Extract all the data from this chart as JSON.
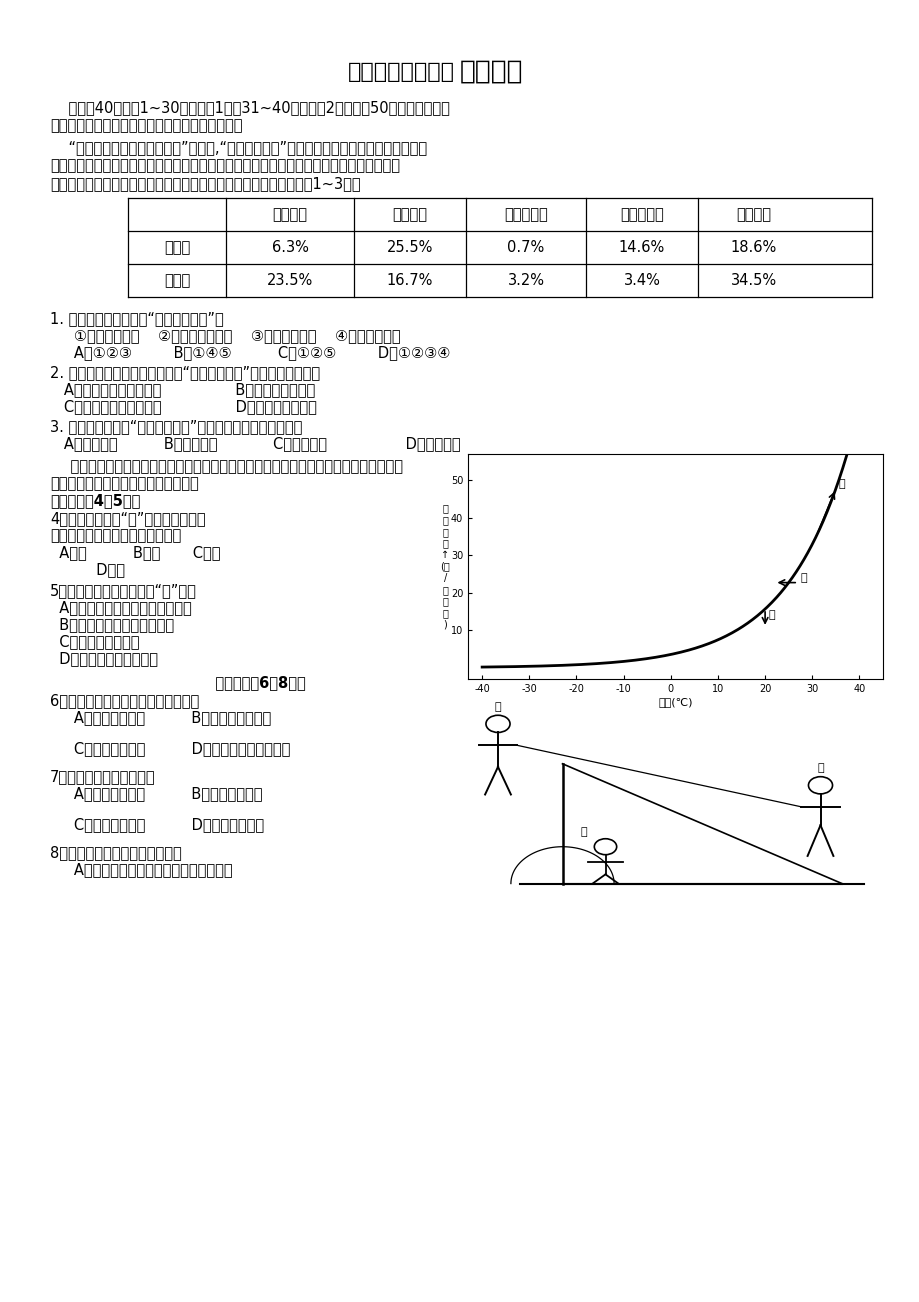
{
  "title_normal": "高三学年十月月考",
  "title_bold": "地理试题",
  "bg_color": "#ffffff",
  "text_color": "#000000",
  "intro_line1": "    本卷共40小题。1~30题每小题1分，31~40题每小题2分，共计50分。在每小题给",
  "intro_line2": "出的四个选项中，只有一项是最符合题目要求的。",
  "p1_line1": "    “民以食为天，粮以土为本。”近年来,“保护性耕作法”越来越得到人们的重视，它是指对耕",
  "p1_line2": "地实行免耕或浅耕措施，并在粮食收割时，及时将作物秸秆粉碎后归还农田，或者将庄稼茬",
  "p1_line3": "子留在田地过冬。下表为某地实验前后冬春季节有关实验资料，回答1~3题。",
  "table_headers": [
    "",
    "土壤水分",
    "土壤空气",
    "土壤有机质",
    "大气悬浮质",
    "大气水分"
  ],
  "table_row1": [
    "实验前",
    "6.3%",
    "25.5%",
    "0.7%",
    "14.6%",
    "18.6%"
  ],
  "table_row2": [
    "实验后",
    "23.5%",
    "16.7%",
    "3.2%",
    "3.4%",
    "34.5%"
  ],
  "q1": "1. 实验结果反映了实行“保护性耕作法”能",
  "q1_opts": "   ①保持土壤水分    ②增强土壤透气性    ③增加大气湿度    ④减少空气污染",
  "q1_ans": "   A．①②③         B．①④⑤          C．①②⑤         D．①②③④",
  "q2": "2. 下列功效中，哪项不属于实行“保护性耕作法”后产生的有利影响",
  "q2_A": "   A．减轻土壤盐碱化程度                B．保护了土壤肥力",
  "q2_C": "   C．增强土壤抗风蚀能力                D．减轻了酸雨程度",
  "q3": "3. 根据实验资料，“保护性耕作法”最适宜在以下哪个地区使用",
  "q3_ans": "   A．三江平原          B．云贵高原            C．河套平原                 D．江汉平原",
  "p2_line1": "    右下图是水汽含量和温度的关系图，图中的曲线为饱和曲线，甲、乙、丙、丁的箭头方",
  "p2_line2": "向分别代表大气中的水汽要达到饱和的",
  "p2_line3_bold": "途径。回答4～5题。",
  "q4_line1": "4．关于自然现象“露”的形成，主要是",
  "q4_line2": "通过下列哪一种途径而达到饱和的",
  "q4_ans1": "  A．甲          B．乙       C．丙",
  "q4_ans2": "          D．丁",
  "q5": "5．下列条件中最容易出现“露”的是",
  "q5_A": "  A．天气晴朗、无风或微风的清晨",
  "q5_B": "  B．我国北方寒冬季节的清晨",
  "q5_C": "  C．阴天高温的夜晚",
  "q5_D": "  D．我国南方夏季的午后",
  "section2_bold": "   读下图完成6～8题。",
  "q6": "6．图中同学所进行的地理实践活动是",
  "q6_AB": "   A．检验勾股定律          B．测量日出的时刻",
  "q6_CD": "   C．测量当地纬度          D．测量正午太阳的高度",
  "q7": "7．站在后面的丙同学负责",
  "q7_AB": "   A．记录测量数据          B．把握观测方向",
  "q7_CD": "   C．把握观测时间          D．把握地理坐标",
  "q8": "8．负责具体测量的男同学，必须",
  "q8_A": "   A．将影子的顶端与半圆尺的中心相对应"
}
